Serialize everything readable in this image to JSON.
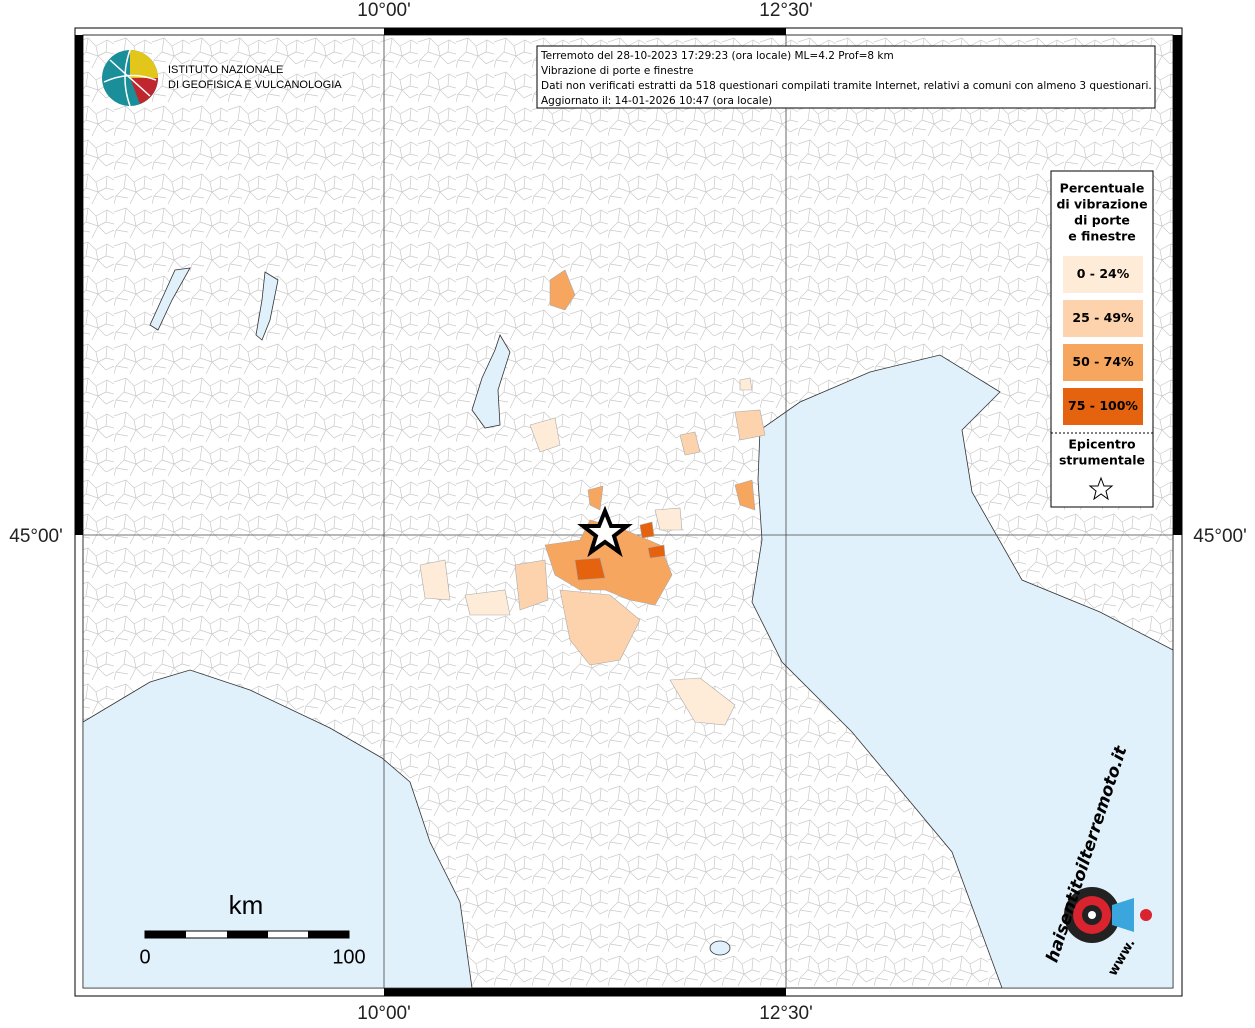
{
  "map": {
    "longitude_labels": [
      "10°00'",
      "12°30'"
    ],
    "latitude_labels": [
      "45°00'"
    ],
    "logo": [
      "ISTITUTO NAZIONALE",
      "DI GEOFISICA E VULCANOLOGIA"
    ],
    "info": [
      "Terremoto del 28-10-2023 17:29:23 (ora locale) ML=4.2 Prof=8 km",
      "Vibrazione di porte e finestre",
      "Dati non verificati estratti da 518 questionari compilati tramite Internet, relativi a comuni con almeno 3 questionari.",
      "Aggiornato il: 14-01-2026 10:47 (ora locale)"
    ],
    "legend": {
      "title": [
        "Percentuale",
        "di vibrazione",
        "di porte",
        "e finestre"
      ],
      "classes": [
        {
          "label": "0 - 24%",
          "color": "#feecd9"
        },
        {
          "label": "25 - 49%",
          "color": "#fdd3ae"
        },
        {
          "label": "50 - 74%",
          "color": "#f7a660"
        },
        {
          "label": "75 - 100%",
          "color": "#e5620f"
        }
      ],
      "epicenter": [
        "Epicentro",
        "strumentale"
      ]
    },
    "scale_bar": {
      "unit": "km",
      "labels": [
        "0",
        "100"
      ]
    },
    "watermark": [
      "haisentitoilterremoto.it",
      "www."
    ]
  }
}
